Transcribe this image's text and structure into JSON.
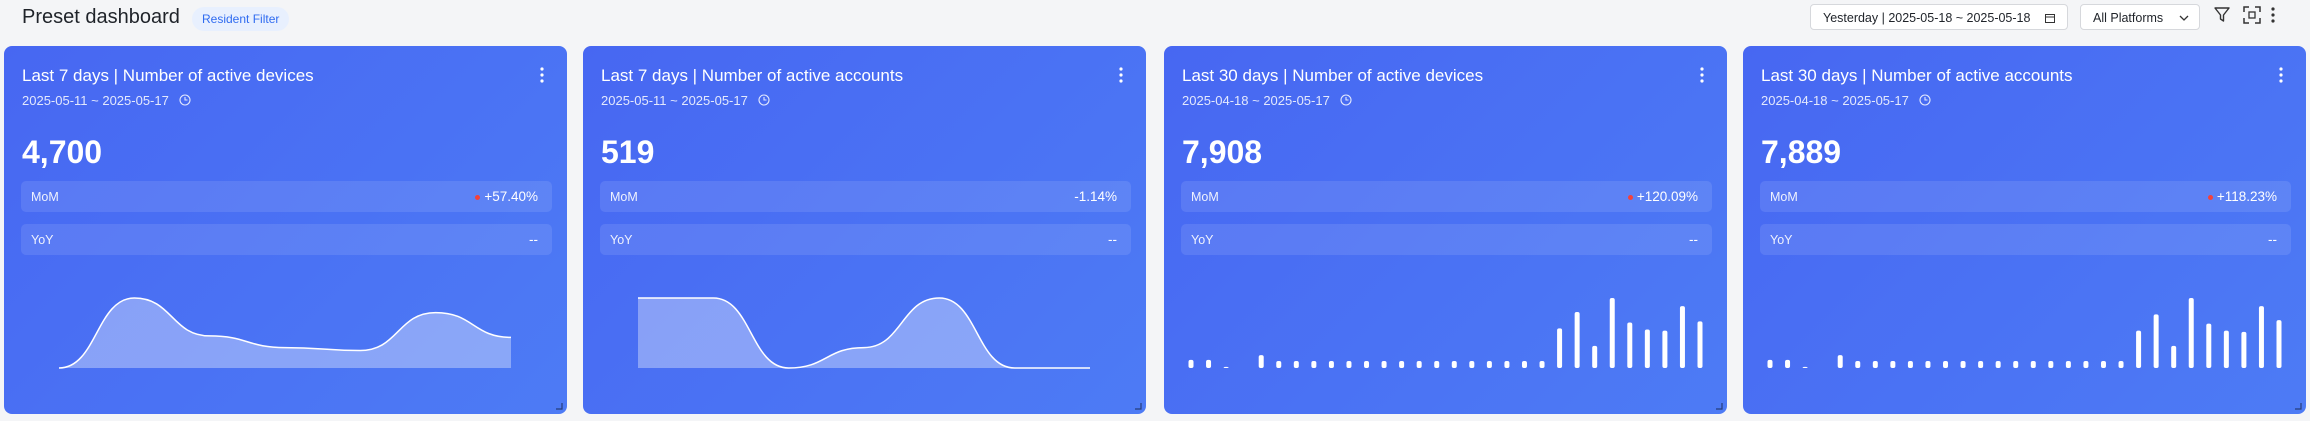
{
  "header": {
    "title": "Preset dashboard",
    "filter": "Resident Filter",
    "date_range": "Yesterday | 2025-05-18 ~ 2025-05-18",
    "platform": "All Platforms"
  },
  "cards": [
    {
      "title": "Last 7 days | Number of active devices",
      "date_range": "2025-05-11 ~ 2025-05-17",
      "value": "4,700",
      "mom_label": "MoM",
      "mom": "+57.40%",
      "mom_up": true,
      "yoy_label": "YoY",
      "yoy": "--",
      "chart": {
        "type": "area",
        "values": [
          0,
          48,
          22,
          14,
          12,
          38,
          21
        ]
      }
    },
    {
      "title": "Last 7 days | Number of active accounts",
      "date_range": "2025-05-11 ~ 2025-05-17",
      "value": "519",
      "mom_label": "MoM",
      "mom": "-1.14%",
      "mom_up": false,
      "yoy_label": "YoY",
      "yoy": "--",
      "chart": {
        "type": "area",
        "values": [
          48,
          48,
          0,
          14,
          48,
          0,
          0
        ]
      }
    },
    {
      "title": "Last 30 days | Number of active devices",
      "date_range": "2025-04-18 ~ 2025-05-17",
      "value": "7,908",
      "mom_label": "MoM",
      "mom": "+120.09%",
      "mom_up": true,
      "yoy_label": "YoY",
      "yoy": "--",
      "chart": {
        "type": "bar",
        "values": [
          7,
          7,
          1,
          0,
          11,
          6,
          6,
          6,
          6,
          6,
          6,
          6,
          6,
          6,
          6,
          6,
          6,
          6,
          6,
          6,
          6,
          34,
          48,
          19,
          60,
          39,
          33,
          32,
          53,
          40
        ]
      }
    },
    {
      "title": "Last 30 days | Number of active accounts",
      "date_range": "2025-04-18 ~ 2025-05-17",
      "value": "7,889",
      "mom_label": "MoM",
      "mom": "+118.23%",
      "mom_up": true,
      "yoy_label": "YoY",
      "yoy": "--",
      "chart": {
        "type": "bar",
        "values": [
          7,
          7,
          1,
          0,
          11,
          6,
          6,
          6,
          6,
          6,
          6,
          6,
          6,
          6,
          6,
          6,
          6,
          6,
          6,
          6,
          6,
          32,
          46,
          19,
          60,
          38,
          32,
          31,
          53,
          41
        ]
      }
    }
  ]
}
